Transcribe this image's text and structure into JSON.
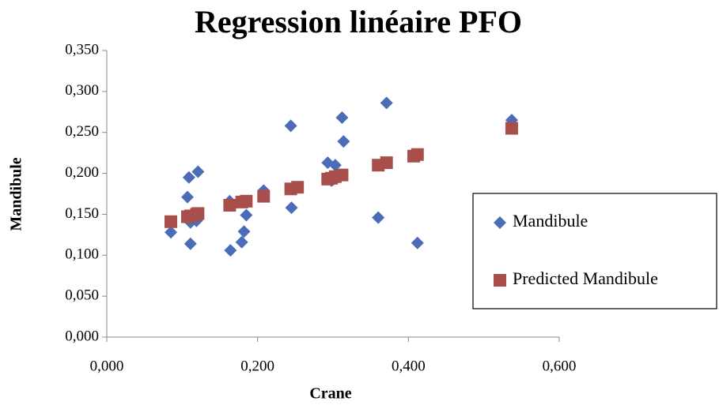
{
  "chart_data": {
    "type": "scatter",
    "title": "Regression linéaire PFO",
    "x_label": "Crane",
    "y_label": "Mandibule",
    "xlim": [
      0,
      0.6
    ],
    "ylim": [
      0,
      0.35
    ],
    "xticks": [
      {
        "value": 0,
        "label": "0,000"
      },
      {
        "value": 0.2,
        "label": "0,200"
      },
      {
        "value": 0.4,
        "label": "0,400"
      },
      {
        "value": 0.6,
        "label": "0,600"
      }
    ],
    "yticks": [
      {
        "value": 0,
        "label": "0,000"
      },
      {
        "value": 0.05,
        "label": "0,050"
      },
      {
        "value": 0.1,
        "label": "0,100"
      },
      {
        "value": 0.15,
        "label": "0,150"
      },
      {
        "value": 0.2,
        "label": "0,200"
      },
      {
        "value": 0.25,
        "label": "0,250"
      },
      {
        "value": 0.3,
        "label": "0,300"
      },
      {
        "value": 0.35,
        "label": "0,350"
      }
    ],
    "legend": "right",
    "series": [
      {
        "name": "Mandibule",
        "color": "#4b6cb7",
        "marker": "diamond",
        "x": [
          0.085,
          0.107,
          0.109,
          0.111,
          0.111,
          0.121,
          0.119,
          0.163,
          0.164,
          0.179,
          0.182,
          0.185,
          0.208,
          0.244,
          0.245,
          0.293,
          0.298,
          0.303,
          0.312,
          0.314,
          0.36,
          0.371,
          0.412,
          0.537
        ],
        "values": [
          0.128,
          0.171,
          0.195,
          0.14,
          0.114,
          0.202,
          0.142,
          0.166,
          0.106,
          0.116,
          0.129,
          0.149,
          0.179,
          0.258,
          0.158,
          0.213,
          0.191,
          0.21,
          0.268,
          0.239,
          0.146,
          0.286,
          0.115,
          0.265
        ]
      },
      {
        "name": "Predicted Mandibule",
        "color": "#a84f4c",
        "marker": "square",
        "x": [
          0.085,
          0.107,
          0.111,
          0.119,
          0.121,
          0.163,
          0.179,
          0.185,
          0.208,
          0.244,
          0.253,
          0.293,
          0.298,
          0.303,
          0.312,
          0.36,
          0.371,
          0.407,
          0.412,
          0.537
        ],
        "values": [
          0.141,
          0.147,
          0.148,
          0.15,
          0.151,
          0.161,
          0.165,
          0.166,
          0.172,
          0.181,
          0.183,
          0.193,
          0.194,
          0.196,
          0.198,
          0.21,
          0.213,
          0.221,
          0.223,
          0.255
        ]
      }
    ]
  }
}
